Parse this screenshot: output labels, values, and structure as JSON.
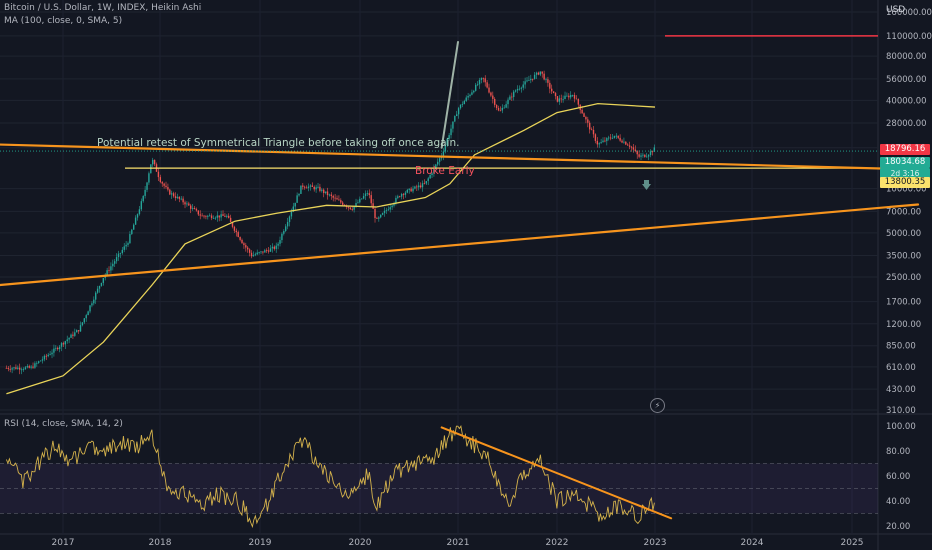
{
  "header": {
    "symbol_line": "Bitcoin / U.S. Dollar, 1W, INDEX, Heikin Ashi",
    "ma_line": "MA (100, close, 0, SMA, 5)",
    "rsi_line": "RSI (14, close, SMA, 14, 2)"
  },
  "annotations": {
    "note": "Potential retest of Symmetrical Triangle before taking off once again.",
    "broke": "Broke Early"
  },
  "price_axis": {
    "currency": "USD",
    "ticks": [
      "160000.00",
      "110000.00",
      "80000.00",
      "56000.00",
      "40000.00",
      "28000.00",
      "19000.00",
      "10000.00",
      "7000.00",
      "5000.00",
      "3500.00",
      "2500.00",
      "1700.00",
      "1200.00",
      "850.00",
      "610.00",
      "430.00",
      "310.00"
    ]
  },
  "price_badges": {
    "last": "18796.16",
    "current": "18034.68",
    "countdown": "2d 3:16",
    "level": "13800.35"
  },
  "rsi_axis": {
    "ticks": [
      "100.00",
      "80.00",
      "60.00",
      "40.00",
      "20.00"
    ]
  },
  "time_axis": {
    "ticks": [
      "2017",
      "2018",
      "2019",
      "2020",
      "2021",
      "2022",
      "2023",
      "2024",
      "2025"
    ]
  },
  "colors": {
    "background": "#131722",
    "up_candle": "#26a69a",
    "down_candle": "#ef5350",
    "ma_line": "#e9d459",
    "trendline": "#f7941d",
    "rsi_line": "#d4b24c",
    "target_line": "#f23645",
    "note_text": "#b7d4c4",
    "broke_text": "#f4525e"
  },
  "chart_data": [
    {
      "type": "candlestick",
      "title": "Bitcoin / U.S. Dollar, 1W, INDEX, Heikin Ashi",
      "y_scale": "log",
      "ylim": [
        310,
        160000
      ],
      "x_range": [
        "2016-05",
        "2025-09"
      ],
      "close_series": [
        {
          "t": "2016-06",
          "v": 600
        },
        {
          "t": "2016-09",
          "v": 600
        },
        {
          "t": "2016-12",
          "v": 800
        },
        {
          "t": "2017-03",
          "v": 1100
        },
        {
          "t": "2017-06",
          "v": 2500
        },
        {
          "t": "2017-09",
          "v": 4300
        },
        {
          "t": "2017-11",
          "v": 9000
        },
        {
          "t": "2017-12",
          "v": 16000
        },
        {
          "t": "2018-01",
          "v": 11500
        },
        {
          "t": "2018-02",
          "v": 9500
        },
        {
          "t": "2018-04",
          "v": 8000
        },
        {
          "t": "2018-06",
          "v": 6500
        },
        {
          "t": "2018-09",
          "v": 6500
        },
        {
          "t": "2018-11",
          "v": 4200
        },
        {
          "t": "2018-12",
          "v": 3500
        },
        {
          "t": "2019-03",
          "v": 4000
        },
        {
          "t": "2019-06",
          "v": 10500
        },
        {
          "t": "2019-08",
          "v": 10000
        },
        {
          "t": "2019-10",
          "v": 8500
        },
        {
          "t": "2019-12",
          "v": 7300
        },
        {
          "t": "2020-02",
          "v": 9500
        },
        {
          "t": "2020-03",
          "v": 6000
        },
        {
          "t": "2020-06",
          "v": 9200
        },
        {
          "t": "2020-09",
          "v": 10800
        },
        {
          "t": "2020-11",
          "v": 17000
        },
        {
          "t": "2021-01",
          "v": 35000
        },
        {
          "t": "2021-04",
          "v": 57000
        },
        {
          "t": "2021-06",
          "v": 33000
        },
        {
          "t": "2021-08",
          "v": 47000
        },
        {
          "t": "2021-11",
          "v": 63000
        },
        {
          "t": "2022-01",
          "v": 40000
        },
        {
          "t": "2022-03",
          "v": 44000
        },
        {
          "t": "2022-06",
          "v": 20000
        },
        {
          "t": "2022-08",
          "v": 23000
        },
        {
          "t": "2022-10",
          "v": 19500
        },
        {
          "t": "2022-11",
          "v": 16500
        },
        {
          "t": "2022-12",
          "v": 17000
        },
        {
          "t": "2023-01",
          "v": 18796.16
        }
      ],
      "series": [
        {
          "name": "MA (100, close, 0, SMA, 5)",
          "points": [
            {
              "t": "2016-06",
              "v": 400
            },
            {
              "t": "2017-01",
              "v": 530
            },
            {
              "t": "2017-06",
              "v": 900
            },
            {
              "t": "2017-12",
              "v": 2200
            },
            {
              "t": "2018-04",
              "v": 4200
            },
            {
              "t": "2018-10",
              "v": 6000
            },
            {
              "t": "2019-03",
              "v": 6800
            },
            {
              "t": "2019-09",
              "v": 7700
            },
            {
              "t": "2020-03",
              "v": 7500
            },
            {
              "t": "2020-09",
              "v": 8700
            },
            {
              "t": "2020-12",
              "v": 10800
            },
            {
              "t": "2021-03",
              "v": 17000
            },
            {
              "t": "2021-09",
              "v": 25000
            },
            {
              "t": "2022-01",
              "v": 33000
            },
            {
              "t": "2022-06",
              "v": 38000
            },
            {
              "t": "2023-01",
              "v": 36000
            }
          ]
        }
      ],
      "horizontal_levels": [
        13800.35,
        110000
      ],
      "trendlines": [
        {
          "from": {
            "t": "2016-05",
            "v": 20000
          },
          "to": {
            "t": "2025-09",
            "v": 13500
          }
        },
        {
          "from": {
            "t": "2016-05",
            "v": 2200
          },
          "to": {
            "t": "2025-09",
            "v": 7800
          }
        },
        {
          "from": {
            "t": "2020-11",
            "v": 19000
          },
          "to": {
            "t": "2021-01",
            "v": 100000
          }
        }
      ],
      "annotations": [
        "Potential retest of Symmetrical Triangle before taking off once again.",
        "Broke Early"
      ]
    },
    {
      "type": "line",
      "title": "RSI (14, close, SMA, 14, 2)",
      "ylim": [
        15,
        105
      ],
      "bands": [
        30,
        70
      ],
      "series": [
        {
          "name": "RSI (14, close, SMA, 14, 2)",
          "points": [
            {
              "t": "2016-06",
              "v": 75
            },
            {
              "t": "2016-08",
              "v": 55
            },
            {
              "t": "2016-10",
              "v": 70
            },
            {
              "t": "2016-12",
              "v": 85
            },
            {
              "t": "2017-02",
              "v": 70
            },
            {
              "t": "2017-04",
              "v": 85
            },
            {
              "t": "2017-06",
              "v": 78
            },
            {
              "t": "2017-08",
              "v": 88
            },
            {
              "t": "2017-10",
              "v": 82
            },
            {
              "t": "2017-12",
              "v": 95
            },
            {
              "t": "2018-02",
              "v": 50
            },
            {
              "t": "2018-04",
              "v": 45
            },
            {
              "t": "2018-06",
              "v": 38
            },
            {
              "t": "2018-08",
              "v": 45
            },
            {
              "t": "2018-10",
              "v": 42
            },
            {
              "t": "2018-12",
              "v": 25
            },
            {
              "t": "2019-02",
              "v": 38
            },
            {
              "t": "2019-04",
              "v": 70
            },
            {
              "t": "2019-06",
              "v": 90
            },
            {
              "t": "2019-08",
              "v": 70
            },
            {
              "t": "2019-10",
              "v": 52
            },
            {
              "t": "2019-12",
              "v": 45
            },
            {
              "t": "2020-02",
              "v": 62
            },
            {
              "t": "2020-03",
              "v": 35
            },
            {
              "t": "2020-05",
              "v": 62
            },
            {
              "t": "2020-08",
              "v": 70
            },
            {
              "t": "2020-10",
              "v": 72
            },
            {
              "t": "2020-12",
              "v": 93
            },
            {
              "t": "2021-01",
              "v": 97
            },
            {
              "t": "2021-03",
              "v": 85
            },
            {
              "t": "2021-05",
              "v": 70
            },
            {
              "t": "2021-07",
              "v": 38
            },
            {
              "t": "2021-09",
              "v": 62
            },
            {
              "t": "2021-11",
              "v": 72
            },
            {
              "t": "2022-01",
              "v": 40
            },
            {
              "t": "2022-03",
              "v": 48
            },
            {
              "t": "2022-05",
              "v": 36
            },
            {
              "t": "2022-06",
              "v": 28
            },
            {
              "t": "2022-08",
              "v": 35
            },
            {
              "t": "2022-10",
              "v": 33
            },
            {
              "t": "2022-11",
              "v": 28
            },
            {
              "t": "2022-12",
              "v": 32
            },
            {
              "t": "2023-01",
              "v": 38
            }
          ]
        }
      ],
      "trendline": {
        "from": {
          "t": "2020-11",
          "v": 99
        },
        "to": {
          "t": "2023-03",
          "v": 26
        }
      }
    }
  ]
}
